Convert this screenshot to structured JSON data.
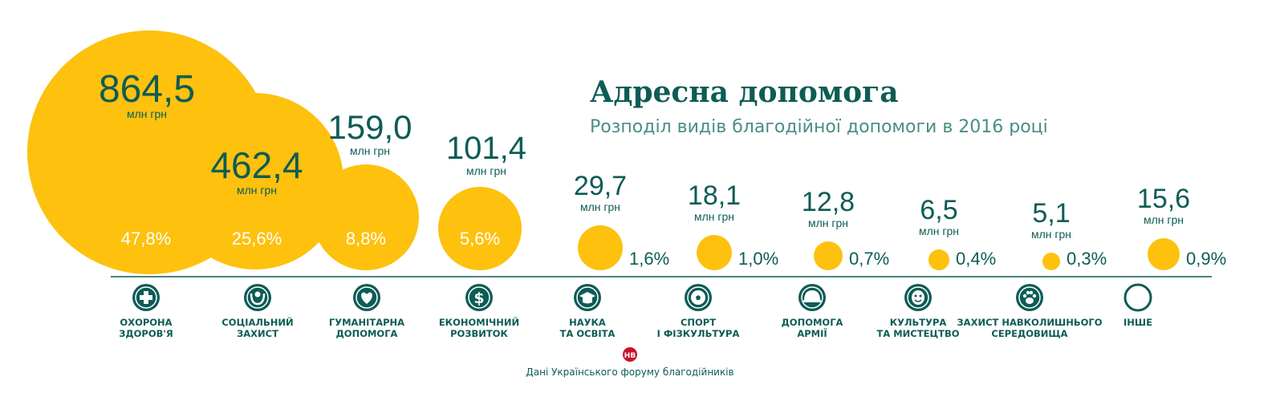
{
  "chart_data": {
    "type": "bubble",
    "title": "Адресна допомога",
    "subtitle": "Розподіл видів благодійної допомоги в 2016 році",
    "unit": "млн грн",
    "source": "Дані Українського форуму благодійників",
    "logo_text": "НВ",
    "colors": {
      "bubble": "#fdc10e",
      "primary": "#0d5c55",
      "logo": "#c8102e"
    },
    "categories": [
      {
        "label": [
          "ОХОРОНА",
          "ЗДОРОВ'Я"
        ],
        "value": 864.5,
        "value_text": "864,5",
        "percent": 47.8,
        "percent_text": "47,8%",
        "icon": "medical-cross-icon"
      },
      {
        "label": [
          "СОЦІАЛЬНИЙ",
          "ЗАХИСТ"
        ],
        "value": 462.4,
        "value_text": "462,4",
        "percent": 25.6,
        "percent_text": "25,6%",
        "icon": "person-protection-icon"
      },
      {
        "label": [
          "ГУМАНІТАРНА",
          "ДОПОМОГА"
        ],
        "value": 159.0,
        "value_text": "159,0",
        "percent": 8.8,
        "percent_text": "8,8%",
        "icon": "heart-icon"
      },
      {
        "label": [
          "ЕКОНОМІЧНИЙ",
          "РОЗВИТОК"
        ],
        "value": 101.4,
        "value_text": "101,4",
        "percent": 5.6,
        "percent_text": "5,6%",
        "icon": "dollar-icon"
      },
      {
        "label": [
          "НАУКА",
          "ТА ОСВІТА"
        ],
        "value": 29.7,
        "value_text": "29,7",
        "percent": 1.6,
        "percent_text": "1,6%",
        "icon": "graduation-cap-icon"
      },
      {
        "label": [
          "СПОРТ",
          "І ФІЗКУЛЬТУРА"
        ],
        "value": 18.1,
        "value_text": "18,1",
        "percent": 1.0,
        "percent_text": "1,0%",
        "icon": "soccer-ball-icon"
      },
      {
        "label": [
          "ДОПОМОГА",
          "АРМІЇ"
        ],
        "value": 12.8,
        "value_text": "12,8",
        "percent": 0.7,
        "percent_text": "0,7%",
        "icon": "military-helmet-icon"
      },
      {
        "label": [
          "КУЛЬТУРА",
          "ТА МИСТЕЦТВО"
        ],
        "value": 6.5,
        "value_text": "6,5",
        "percent": 0.4,
        "percent_text": "0,4%",
        "icon": "theater-mask-icon"
      },
      {
        "label": [
          "ЗАХИСТ НАВКОЛИШНЬОГО",
          "СЕРЕДОВИЩА"
        ],
        "value": 5.1,
        "value_text": "5,1",
        "percent": 0.3,
        "percent_text": "0,3%",
        "icon": "paw-icon"
      },
      {
        "label": [
          "ІНШЕ"
        ],
        "value": 15.6,
        "value_text": "15,6",
        "percent": 0.9,
        "percent_text": "0,9%",
        "icon": "empty-circle-icon"
      }
    ]
  }
}
